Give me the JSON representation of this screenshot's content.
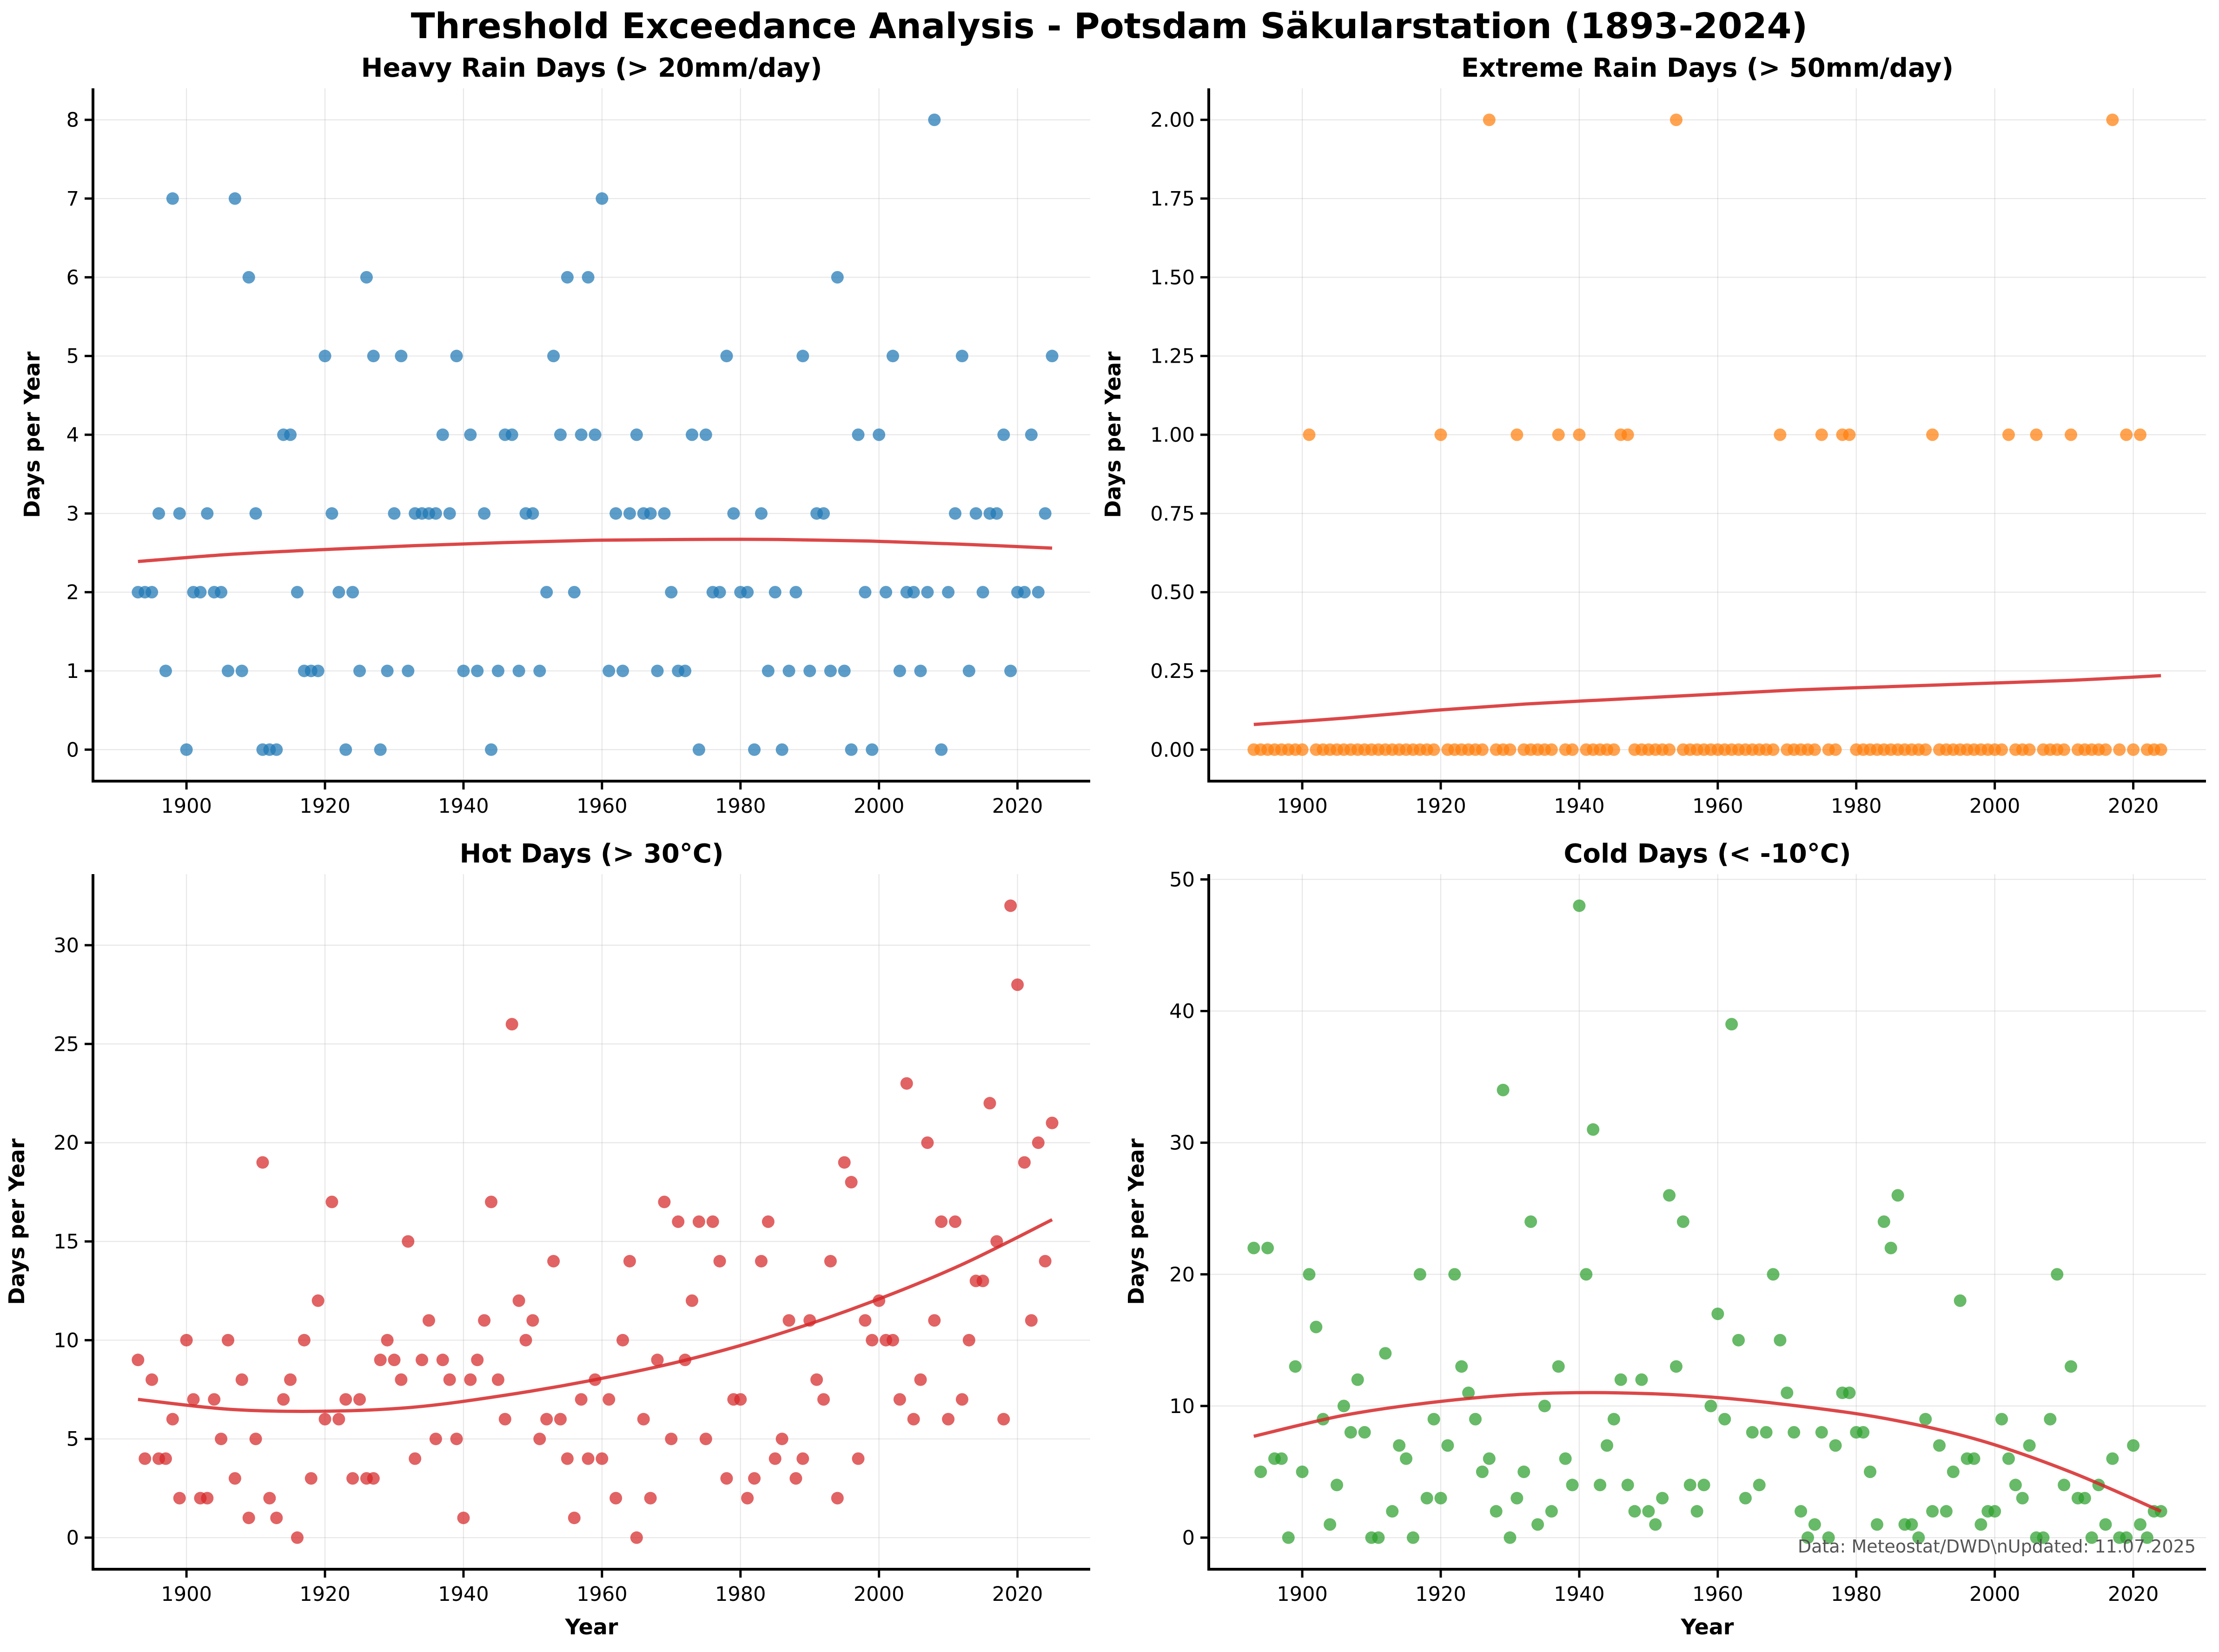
{
  "figure": {
    "title": "Threshold Exceedance Analysis - Potsdam Säkularstation (1893-2024)",
    "source_note": "Data: Meteostat/DWD\\nUpdated: 11.07.2025"
  },
  "chart_data": [
    {
      "type": "scatter",
      "title": "Heavy Rain Days (> 20mm/day)",
      "xlabel": "",
      "ylabel": "Days per Year",
      "xlim": [
        1886.5,
        2030.5
      ],
      "ylim": [
        -0.4,
        8.4
      ],
      "xticks": [
        1900,
        1920,
        1940,
        1960,
        1980,
        2000,
        2020
      ],
      "yticks": [
        0,
        1,
        2,
        3,
        4,
        5,
        6,
        7,
        8
      ],
      "tick_decimals": 0,
      "color": "#1f77b4",
      "trend_color": "#d62728",
      "grid": true,
      "x_start": 1893,
      "values": [
        2,
        2,
        2,
        3,
        1,
        7,
        3,
        0,
        2,
        2,
        3,
        2,
        2,
        1,
        7,
        1,
        6,
        3,
        0,
        0,
        0,
        4,
        4,
        2,
        1,
        1,
        1,
        5,
        3,
        2,
        0,
        2,
        1,
        6,
        5,
        0,
        1,
        3,
        5,
        1,
        3,
        3,
        3,
        3,
        4,
        3,
        5,
        1,
        4,
        1,
        3,
        0,
        1,
        4,
        4,
        1,
        3,
        3,
        1,
        2,
        5,
        4,
        6,
        2,
        4,
        6,
        4,
        7,
        1,
        3,
        1,
        3,
        4,
        3,
        3,
        1,
        3,
        2,
        1,
        1,
        4,
        0,
        4,
        2,
        2,
        5,
        3,
        2,
        2,
        0,
        3,
        1,
        2,
        0,
        1,
        2,
        5,
        1,
        3,
        3,
        1,
        6,
        1,
        0,
        4,
        2,
        0,
        4,
        2,
        5,
        1,
        2,
        2,
        1,
        2,
        8,
        0,
        2,
        3,
        5,
        1,
        3,
        2,
        3,
        3,
        4,
        1,
        2,
        2,
        4,
        2,
        3,
        5
      ],
      "trend": [
        2.39,
        2.48,
        2.54,
        2.59,
        2.63,
        2.66,
        2.67,
        2.67,
        2.65,
        2.61,
        2.56
      ]
    },
    {
      "type": "scatter",
      "title": "Extreme Rain Days (> 50mm/day)",
      "xlabel": "",
      "ylabel": "Days per Year",
      "xlim": [
        1886.5,
        2030.5
      ],
      "ylim": [
        -0.1,
        2.1
      ],
      "xticks": [
        1900,
        1920,
        1940,
        1960,
        1980,
        2000,
        2020
      ],
      "yticks": [
        0,
        0.25,
        0.5,
        0.75,
        1.0,
        1.25,
        1.5,
        1.75,
        2.0
      ],
      "tick_decimals": 2,
      "color": "#ff7f0e",
      "trend_color": "#d62728",
      "grid": true,
      "x_start": 1893,
      "values": [
        0,
        0,
        0,
        0,
        0,
        0,
        0,
        0,
        1,
        0,
        0,
        0,
        0,
        0,
        0,
        0,
        0,
        0,
        0,
        0,
        0,
        0,
        0,
        0,
        0,
        0,
        0,
        1,
        0,
        0,
        0,
        0,
        0,
        0,
        2,
        0,
        0,
        0,
        1,
        0,
        0,
        0,
        0,
        0,
        1,
        0,
        0,
        1,
        0,
        0,
        0,
        0,
        0,
        1,
        1,
        0,
        0,
        0,
        0,
        0,
        0,
        2,
        0,
        0,
        0,
        0,
        0,
        0,
        0,
        0,
        0,
        0,
        0,
        0,
        0,
        0,
        1,
        0,
        0,
        0,
        0,
        0,
        1,
        0,
        0,
        1,
        1,
        0,
        0,
        0,
        0,
        0,
        0,
        0,
        0,
        0,
        0,
        0,
        1,
        0,
        0,
        0,
        0,
        0,
        0,
        0,
        0,
        0,
        0,
        1,
        0,
        0,
        0,
        1,
        0,
        0,
        0,
        0,
        1,
        0,
        0,
        0,
        0,
        0,
        2,
        0,
        1,
        0,
        1,
        0,
        0,
        0
      ],
      "trend": [
        0.08,
        0.1,
        0.125,
        0.145,
        0.16,
        0.175,
        0.19,
        0.2,
        0.21,
        0.22,
        0.235
      ]
    },
    {
      "type": "scatter",
      "title": "Hot Days (> 30°C)",
      "xlabel": "Year",
      "ylabel": "Days per Year",
      "xlim": [
        1886.5,
        2030.5
      ],
      "ylim": [
        -1.6,
        33.6
      ],
      "xticks": [
        1900,
        1920,
        1940,
        1960,
        1980,
        2000,
        2020
      ],
      "yticks": [
        0,
        5,
        10,
        15,
        20,
        25,
        30
      ],
      "tick_decimals": 0,
      "color": "#d62728",
      "trend_color": "#d62728",
      "grid": true,
      "x_start": 1893,
      "values": [
        9,
        4,
        8,
        4,
        4,
        6,
        2,
        10,
        7,
        2,
        2,
        7,
        5,
        10,
        3,
        8,
        1,
        5,
        19,
        2,
        1,
        7,
        8,
        0,
        10,
        3,
        12,
        6,
        17,
        6,
        7,
        3,
        7,
        3,
        3,
        9,
        10,
        9,
        8,
        15,
        4,
        9,
        11,
        5,
        9,
        8,
        5,
        1,
        8,
        9,
        11,
        17,
        8,
        6,
        26,
        12,
        10,
        11,
        5,
        6,
        14,
        6,
        4,
        1,
        7,
        4,
        8,
        4,
        7,
        2,
        10,
        14,
        0,
        6,
        2,
        9,
        17,
        5,
        16,
        9,
        12,
        16,
        5,
        16,
        14,
        3,
        7,
        7,
        2,
        3,
        14,
        16,
        4,
        5,
        11,
        3,
        4,
        11,
        8,
        7,
        14,
        2,
        19,
        18,
        4,
        11,
        10,
        12,
        10,
        10,
        7,
        23,
        6,
        8,
        20,
        11,
        16,
        6,
        16,
        7,
        10,
        13,
        13,
        22,
        15,
        6,
        32,
        28,
        19,
        11,
        20,
        14,
        21
      ],
      "trend": [
        7.0,
        6.5,
        6.4,
        6.6,
        7.2,
        8.0,
        9.0,
        10.3,
        11.9,
        13.8,
        16.1
      ]
    },
    {
      "type": "scatter",
      "title": "Cold Days (< -10°C)",
      "xlabel": "Year",
      "ylabel": "Days per Year",
      "xlim": [
        1886.5,
        2030.5
      ],
      "ylim": [
        -2.4,
        50.4
      ],
      "xticks": [
        1900,
        1920,
        1940,
        1960,
        1980,
        2000,
        2020
      ],
      "yticks": [
        0,
        10,
        20,
        30,
        40,
        50
      ],
      "tick_decimals": 0,
      "color": "#2ca02c",
      "trend_color": "#d62728",
      "grid": true,
      "x_start": 1893,
      "values": [
        22,
        5,
        22,
        6,
        6,
        0,
        13,
        5,
        20,
        16,
        9,
        1,
        4,
        10,
        8,
        12,
        8,
        0,
        0,
        14,
        2,
        7,
        6,
        0,
        20,
        3,
        9,
        3,
        7,
        20,
        13,
        11,
        9,
        5,
        6,
        2,
        34,
        0,
        3,
        5,
        24,
        1,
        10,
        2,
        13,
        6,
        4,
        48,
        20,
        31,
        4,
        7,
        9,
        12,
        4,
        2,
        12,
        2,
        1,
        3,
        26,
        13,
        24,
        4,
        2,
        4,
        10,
        17,
        9,
        39,
        15,
        3,
        8,
        4,
        8,
        20,
        15,
        11,
        8,
        2,
        0,
        1,
        8,
        0,
        7,
        11,
        11,
        8,
        8,
        5,
        1,
        24,
        22,
        26,
        1,
        1,
        0,
        9,
        2,
        7,
        2,
        5,
        18,
        6,
        6,
        1,
        2,
        2,
        9,
        6,
        4,
        3,
        7,
        0,
        0,
        9,
        20,
        4,
        13,
        3,
        3,
        0,
        4,
        1,
        6,
        0,
        0,
        7,
        1,
        0,
        2,
        2
      ],
      "trend": [
        7.7,
        9.3,
        10.3,
        10.9,
        11.0,
        10.7,
        10.0,
        9.0,
        7.4,
        5.0,
        2.0
      ]
    }
  ]
}
